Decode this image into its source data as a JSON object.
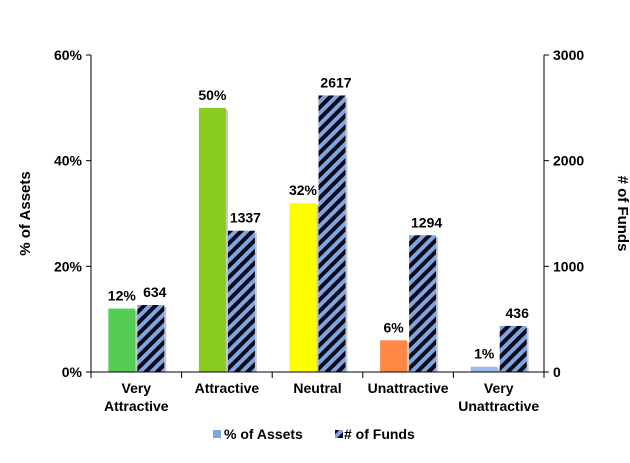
{
  "chart_data": {
    "type": "bar",
    "categories": [
      [
        "Very",
        "Attractive"
      ],
      [
        "Attractive"
      ],
      [
        "Neutral"
      ],
      [
        "Unattractive"
      ],
      [
        "Very",
        "Unattractive"
      ]
    ],
    "series": [
      {
        "name": "% of Assets",
        "axis": "left",
        "values": [
          12,
          50,
          32,
          6,
          1
        ],
        "labels": [
          "12%",
          "50%",
          "32%",
          "6%",
          "1%"
        ],
        "colors": [
          "#55cc55",
          "#88cc22",
          "#ffff00",
          "#ff8844",
          "#99bbee"
        ]
      },
      {
        "name": "# of Funds",
        "axis": "right",
        "values": [
          634,
          1337,
          2617,
          1294,
          436
        ],
        "labels": [
          "634",
          "1337",
          "2617",
          "1294",
          "436"
        ],
        "pattern": "diagonal stripes",
        "colors": [
          "#7ea6e0",
          "#0a0a1a"
        ]
      }
    ],
    "ylabel": "% of Assets",
    "y2label": "# of Funds",
    "ylim": [
      0,
      60
    ],
    "y2lim": [
      0,
      3000
    ],
    "yticks": [
      "0%",
      "20%",
      "40%",
      "60%"
    ],
    "y2ticks": [
      "0",
      "1000",
      "2000",
      "3000"
    ],
    "grid": false,
    "legend_position": "bottom"
  }
}
